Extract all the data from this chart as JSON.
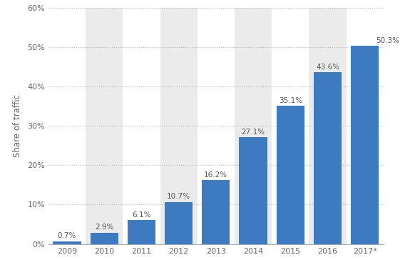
{
  "categories": [
    "2009",
    "2010",
    "2011",
    "2012",
    "2013",
    "2014",
    "2015",
    "2016",
    "2017*"
  ],
  "values": [
    0.7,
    2.9,
    6.1,
    10.7,
    16.2,
    27.1,
    35.1,
    43.6,
    50.3
  ],
  "labels": [
    "0.7%",
    "2.9%",
    "6.1%",
    "10.7%",
    "16.2%",
    "27.1%",
    "35.1%",
    "43.6%",
    "50.3%"
  ],
  "bar_color": "#3d7abf",
  "background_color": "#ffffff",
  "shade_color": "#ebebeb",
  "ylabel": "Share of traffic",
  "ylim": [
    0,
    60
  ],
  "yticks": [
    0,
    10,
    20,
    30,
    40,
    50,
    60
  ],
  "ytick_labels": [
    "0%",
    "10%",
    "20%",
    "30%",
    "40%",
    "50%",
    "60%"
  ],
  "grid_color": "#bbbbbb",
  "label_fontsize": 7.5,
  "tick_fontsize": 8,
  "ylabel_fontsize": 8.5,
  "shaded_cols": [
    1,
    3,
    5,
    7
  ]
}
